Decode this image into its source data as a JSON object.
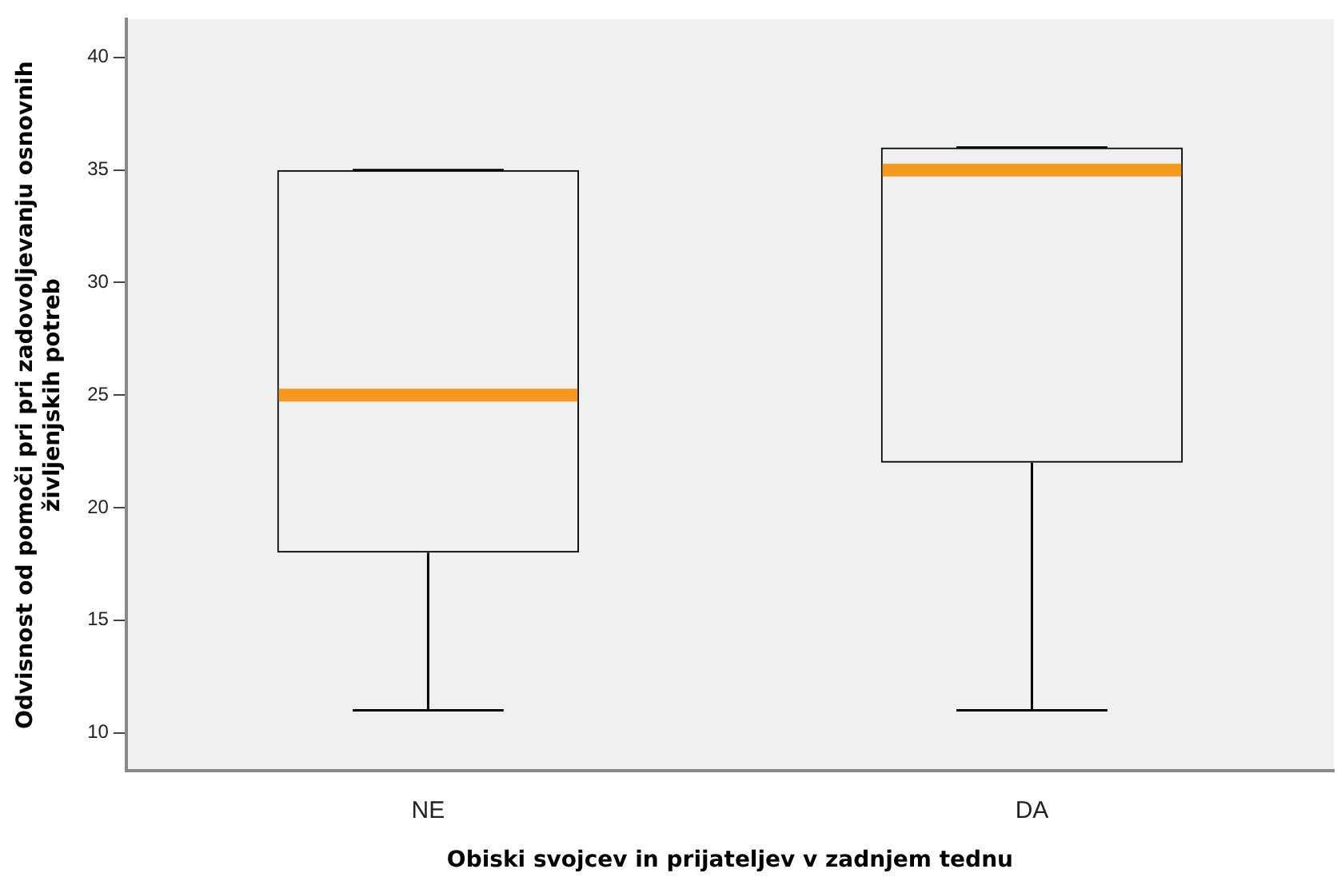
{
  "chart_data": {
    "type": "box",
    "xlabel": "Obiski svojcev in prijateljev v zadnjem tednu",
    "ylabel": "Odvisnost od pomoči pri pri zadovoljevanju osnovnih\nživljenjskih potreb",
    "categories": [
      "NE",
      "DA"
    ],
    "boxes": [
      {
        "low": 11,
        "q1": 18,
        "median": 25,
        "q3": 35,
        "high": 35
      },
      {
        "low": 11,
        "q1": 22,
        "median": 35,
        "q3": 36,
        "high": 36
      }
    ],
    "ylim": [
      8.3,
      41.7
    ],
    "yticks": [
      10,
      15,
      20,
      25,
      30,
      35,
      40
    ],
    "grid": false,
    "legend": false
  }
}
